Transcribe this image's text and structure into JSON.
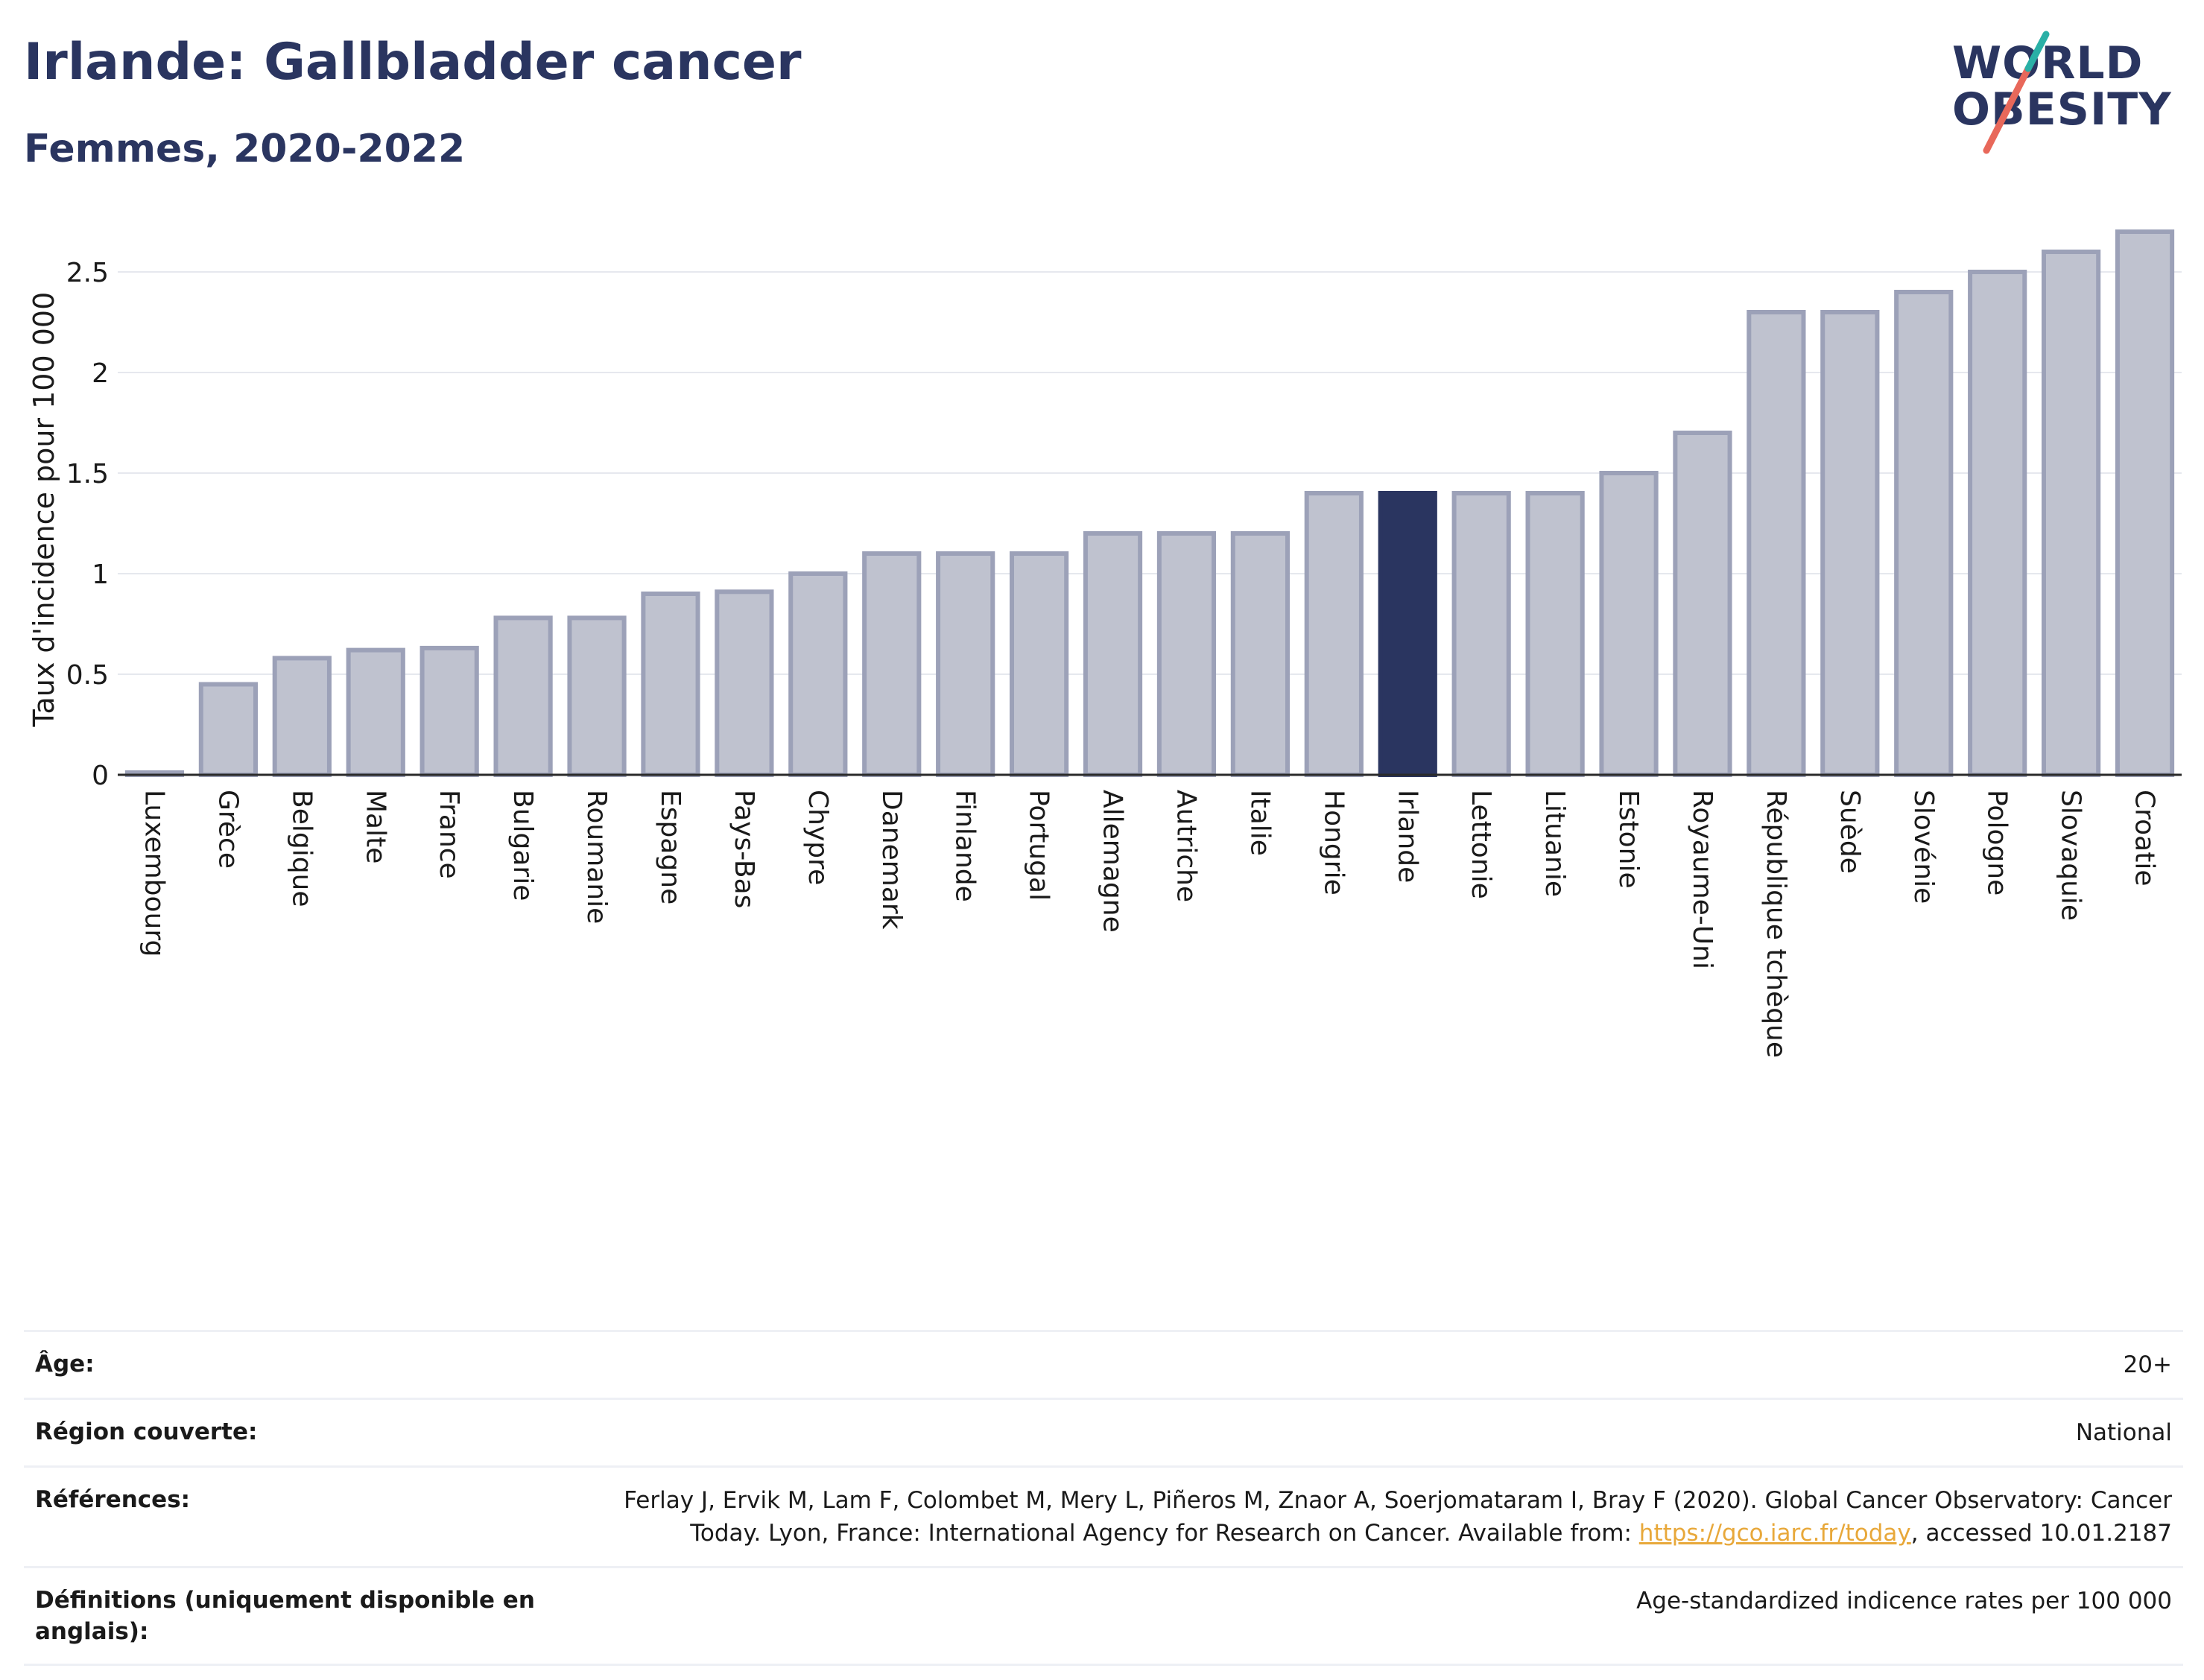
{
  "header": {
    "title": "Irlande: Gallbladder cancer",
    "subtitle": "Femmes, 2020-2022"
  },
  "logo": {
    "line1": "WORLD",
    "line2": "OBESITY"
  },
  "colors": {
    "bar": "#bfc2cf",
    "bar_border": "#9ca1b8",
    "highlight": "#2a3560",
    "accent_teal": "#2ab0a6",
    "accent_red": "#e8685a",
    "link": "#e8a83a"
  },
  "chart_data": {
    "type": "bar",
    "ylabel": "Taux d'incidence pour 100 000",
    "ylim": [
      0,
      2.75
    ],
    "yticks": [
      0,
      0.5,
      1,
      1.5,
      2,
      2.5
    ],
    "ytick_labels": [
      "0",
      "0.5",
      "1",
      "1.5",
      "2",
      "2.5"
    ],
    "grid": true,
    "highlight": "Irlande",
    "categories": [
      "Luxembourg",
      "Grèce",
      "Belgique",
      "Malte",
      "France",
      "Bulgarie",
      "Roumanie",
      "Espagne",
      "Pays-Bas",
      "Chypre",
      "Danemark",
      "Finlande",
      "Portugal",
      "Allemagne",
      "Autriche",
      "Italie",
      "Hongrie",
      "Irlande",
      "Lettonie",
      "Lituanie",
      "Estonie",
      "Royaume-Uni",
      "République tchèque",
      "Suède",
      "Slovénie",
      "Pologne",
      "Slovaquie",
      "Croatie"
    ],
    "values": [
      0.01,
      0.45,
      0.58,
      0.62,
      0.63,
      0.78,
      0.78,
      0.9,
      0.91,
      1.0,
      1.1,
      1.1,
      1.1,
      1.2,
      1.2,
      1.2,
      1.4,
      1.4,
      1.4,
      1.4,
      1.5,
      1.7,
      2.3,
      2.3,
      2.4,
      2.5,
      2.6,
      2.7
    ]
  },
  "meta": {
    "age_label": "Âge:",
    "age_value": "20+",
    "region_label": "Région couverte:",
    "region_value": "National",
    "references_label": "Références:",
    "references_text": "Ferlay J, Ervik M, Lam F, Colombet M, Mery L, Piñeros M, Znaor A, Soerjomataram I, Bray F (2020). Global Cancer Observatory: Cancer Today. Lyon, France: International Agency for Research on Cancer. Available from:",
    "references_link": "https://gco.iarc.fr/today",
    "references_suffix": ", accessed 10.01.2187",
    "definitions_label": "Définitions (uniquement disponible en anglais):",
    "definitions_value": "Age-standardized indicence rates per 100 000"
  }
}
